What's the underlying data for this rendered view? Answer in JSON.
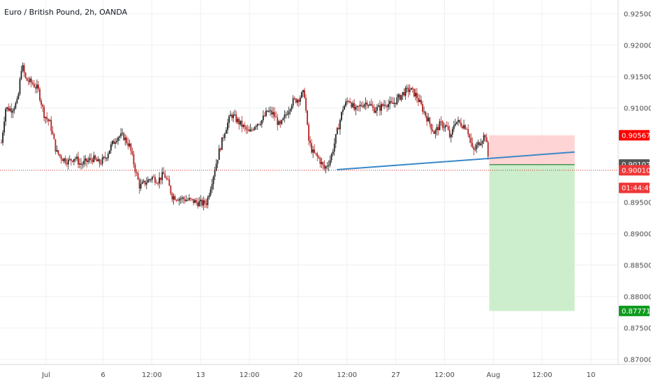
{
  "chart_data": {
    "type": "candlestick",
    "title": "Euro / British Pound, 2h, OANDA",
    "ylim": [
      0.8692,
      0.9272
    ],
    "xlim": [
      0,
      29
    ],
    "y_ticks": [
      {
        "value": 0.925,
        "label": "0.92500"
      },
      {
        "value": 0.92,
        "label": "0.92000"
      },
      {
        "value": 0.915,
        "label": "0.91500"
      },
      {
        "value": 0.91,
        "label": "0.91000"
      },
      {
        "value": 0.895,
        "label": "0.89500"
      },
      {
        "value": 0.89,
        "label": "0.89000"
      },
      {
        "value": 0.885,
        "label": "0.88500"
      },
      {
        "value": 0.88,
        "label": "0.88000"
      },
      {
        "value": 0.875,
        "label": "0.87500"
      },
      {
        "value": 0.87,
        "label": "0.87000"
      }
    ],
    "x_ticks": [
      {
        "value": 2.2,
        "label": "Jul"
      },
      {
        "value": 5.0,
        "label": "6"
      },
      {
        "value": 7.4,
        "label": "12:00"
      },
      {
        "value": 9.8,
        "label": "13"
      },
      {
        "value": 12.2,
        "label": "12:00"
      },
      {
        "value": 14.6,
        "label": "20"
      },
      {
        "value": 17.0,
        "label": "12:00"
      },
      {
        "value": 19.4,
        "label": "27"
      },
      {
        "value": 21.8,
        "label": "12:00"
      },
      {
        "value": 24.2,
        "label": "Aug"
      },
      {
        "value": 26.6,
        "label": "12:00"
      },
      {
        "value": 29.0,
        "label": "10"
      }
    ],
    "price_path": [
      [
        0,
        0.9045
      ],
      [
        0.2,
        0.91
      ],
      [
        0.5,
        0.9098
      ],
      [
        0.8,
        0.911
      ],
      [
        1.0,
        0.917
      ],
      [
        1.2,
        0.9145
      ],
      [
        1.5,
        0.914
      ],
      [
        1.8,
        0.913
      ],
      [
        2.1,
        0.909
      ],
      [
        2.4,
        0.9075
      ],
      [
        2.7,
        0.903
      ],
      [
        3.0,
        0.902
      ],
      [
        3.3,
        0.9015
      ],
      [
        3.6,
        0.9022
      ],
      [
        3.9,
        0.901
      ],
      [
        4.2,
        0.9015
      ],
      [
        4.5,
        0.902
      ],
      [
        4.8,
        0.9012
      ],
      [
        5.1,
        0.902
      ],
      [
        5.4,
        0.904
      ],
      [
        5.7,
        0.9055
      ],
      [
        6.0,
        0.9055
      ],
      [
        6.3,
        0.904
      ],
      [
        6.6,
        0.9
      ],
      [
        6.8,
        0.8975
      ],
      [
        7.1,
        0.8982
      ],
      [
        7.4,
        0.899
      ],
      [
        7.7,
        0.8985
      ],
      [
        8.0,
        0.8995
      ],
      [
        8.2,
        0.898
      ],
      [
        8.4,
        0.896
      ],
      [
        8.7,
        0.8957
      ],
      [
        9.0,
        0.8955
      ],
      [
        9.3,
        0.8953
      ],
      [
        9.6,
        0.895
      ],
      [
        9.9,
        0.8948
      ],
      [
        10.1,
        0.895
      ],
      [
        10.4,
        0.899
      ],
      [
        10.7,
        0.903
      ],
      [
        11.0,
        0.9065
      ],
      [
        11.3,
        0.909
      ],
      [
        11.6,
        0.908
      ],
      [
        11.9,
        0.907
      ],
      [
        12.2,
        0.906
      ],
      [
        12.5,
        0.9075
      ],
      [
        12.8,
        0.908
      ],
      [
        13.1,
        0.9095
      ],
      [
        13.4,
        0.909
      ],
      [
        13.7,
        0.907
      ],
      [
        14.0,
        0.909
      ],
      [
        14.3,
        0.911
      ],
      [
        14.6,
        0.9115
      ],
      [
        14.9,
        0.9125
      ],
      [
        15.1,
        0.905
      ],
      [
        15.3,
        0.903
      ],
      [
        15.6,
        0.902
      ],
      [
        15.9,
        0.9003
      ],
      [
        16.2,
        0.902
      ],
      [
        16.5,
        0.906
      ],
      [
        16.8,
        0.91
      ],
      [
        17.1,
        0.9115
      ],
      [
        17.4,
        0.9095
      ],
      [
        17.7,
        0.9105
      ],
      [
        18.0,
        0.911
      ],
      [
        18.3,
        0.9098
      ],
      [
        18.6,
        0.91
      ],
      [
        18.9,
        0.9108
      ],
      [
        19.2,
        0.9105
      ],
      [
        19.5,
        0.9115
      ],
      [
        19.8,
        0.9125
      ],
      [
        20.1,
        0.913
      ],
      [
        20.4,
        0.912
      ],
      [
        20.7,
        0.91
      ],
      [
        21.0,
        0.908
      ],
      [
        21.3,
        0.906
      ],
      [
        21.6,
        0.9075
      ],
      [
        21.9,
        0.907
      ],
      [
        22.1,
        0.905
      ],
      [
        22.3,
        0.908
      ],
      [
        22.6,
        0.9075
      ],
      [
        22.9,
        0.907
      ],
      [
        23.2,
        0.903
      ],
      [
        23.5,
        0.9045
      ],
      [
        23.8,
        0.9058
      ],
      [
        24.0,
        0.9008
      ]
    ],
    "annotations": {
      "trendline": {
        "x1": 16.5,
        "y1": 0.9002,
        "x2": 28.2,
        "y2": 0.903
      },
      "position": {
        "x_start": 24.0,
        "x_end": 28.2,
        "entry": 0.901,
        "stop": 0.90567,
        "target": 0.87771
      },
      "current_price_line": 0.9001
    },
    "price_badges": [
      {
        "kind": "stop",
        "value": 0.90567,
        "label": "0.90567",
        "color": "#ff0000"
      },
      {
        "kind": "entry",
        "value": 0.90102,
        "label": "0.90102",
        "color": "#555555"
      },
      {
        "kind": "last",
        "value": 0.9001,
        "label": "0.90010",
        "color": "#ee3737"
      },
      {
        "kind": "countdown",
        "value": 0.8973,
        "label": "01:44:49",
        "color": "#ee3737"
      },
      {
        "kind": "target",
        "value": 0.87771,
        "label": "0.87771",
        "color": "#0e9b1e"
      }
    ],
    "colors": {
      "up": "#222222",
      "down": "#b22222",
      "grid": "#eef0f3",
      "trendline": "#3a88c8",
      "stop_zone": "#ffcccc",
      "target_zone": "#c8ecc6",
      "current_line": "#cc2222",
      "entry_line": "#1a7a2a"
    }
  }
}
